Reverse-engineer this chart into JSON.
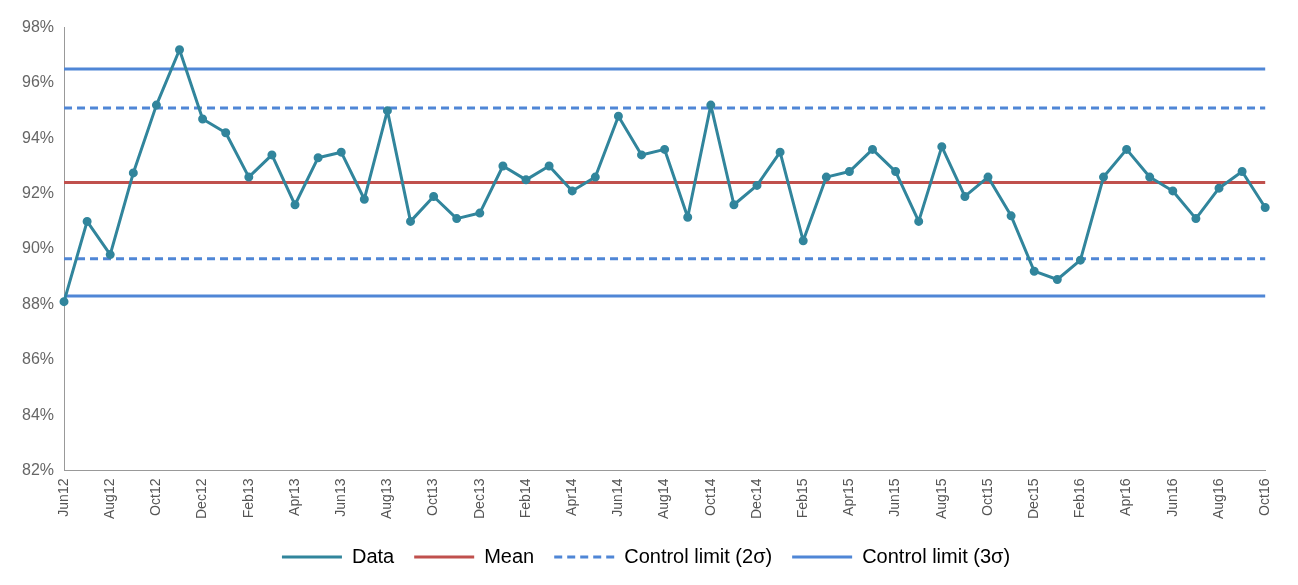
{
  "chart_data": {
    "type": "line",
    "categories": [
      "Jun12",
      null,
      "Aug12",
      null,
      "Oct12",
      null,
      "Dec12",
      null,
      "Feb13",
      null,
      "Apr13",
      null,
      "Jun13",
      null,
      "Aug13",
      null,
      "Oct13",
      null,
      "Dec13",
      null,
      "Feb14",
      null,
      "Apr14",
      null,
      "Jun14",
      null,
      "Aug14",
      null,
      "Oct14",
      null,
      "Dec14",
      null,
      "Feb15",
      null,
      "Apr15",
      null,
      "Jun15",
      null,
      "Aug15",
      null,
      "Oct15",
      null,
      "Dec15",
      null,
      "Feb16",
      null,
      "Apr16",
      null,
      "Jun16",
      null,
      "Aug16",
      null,
      "Oct16"
    ],
    "series": [
      {
        "name": "Data",
        "color": "#31859c",
        "values": [
          88.1,
          91.0,
          89.8,
          92.75,
          95.2,
          97.2,
          94.7,
          94.2,
          92.6,
          93.4,
          91.6,
          93.3,
          93.5,
          91.8,
          95.0,
          91.0,
          91.9,
          91.1,
          91.3,
          93.0,
          92.5,
          93.0,
          92.1,
          92.6,
          94.8,
          93.4,
          93.6,
          91.15,
          95.2,
          91.6,
          92.3,
          93.5,
          90.3,
          92.6,
          92.8,
          93.6,
          92.8,
          91.0,
          93.7,
          91.9,
          92.6,
          91.2,
          89.2,
          88.9,
          89.6,
          92.6,
          93.6,
          92.6,
          92.1,
          91.1,
          92.2,
          92.8,
          91.5
        ]
      }
    ],
    "ref_lines": [
      {
        "axis": "y",
        "value": 92.4,
        "label": "Mean",
        "color": "#c0504d",
        "line_style": "solid"
      },
      {
        "axis": "y",
        "value": 95.1,
        "label": "Control limit (2σ)",
        "color": "#4f86d6",
        "line_style": "dashed"
      },
      {
        "axis": "y",
        "value": 89.65,
        "label": null,
        "color": "#4f86d6",
        "line_style": "dashed"
      },
      {
        "axis": "y",
        "value": 96.5,
        "label": "Control limit (3σ)",
        "color": "#4f86d6",
        "line_style": "solid"
      },
      {
        "axis": "y",
        "value": 88.3,
        "label": null,
        "color": "#4f86d6",
        "line_style": "solid"
      }
    ],
    "ylim": [
      82,
      98
    ],
    "yticks": [
      {
        "value": 82,
        "label": "82%"
      },
      {
        "value": 84,
        "label": "84%"
      },
      {
        "value": 86,
        "label": "86%"
      },
      {
        "value": 88,
        "label": "88%"
      },
      {
        "value": 90,
        "label": "90%"
      },
      {
        "value": 92,
        "label": "92%"
      },
      {
        "value": 94,
        "label": "94%"
      },
      {
        "value": 96,
        "label": "96%"
      },
      {
        "value": 98,
        "label": "98%"
      }
    ],
    "marker": "circle",
    "line_style": "solid",
    "grid": false,
    "legend": "bottom"
  }
}
